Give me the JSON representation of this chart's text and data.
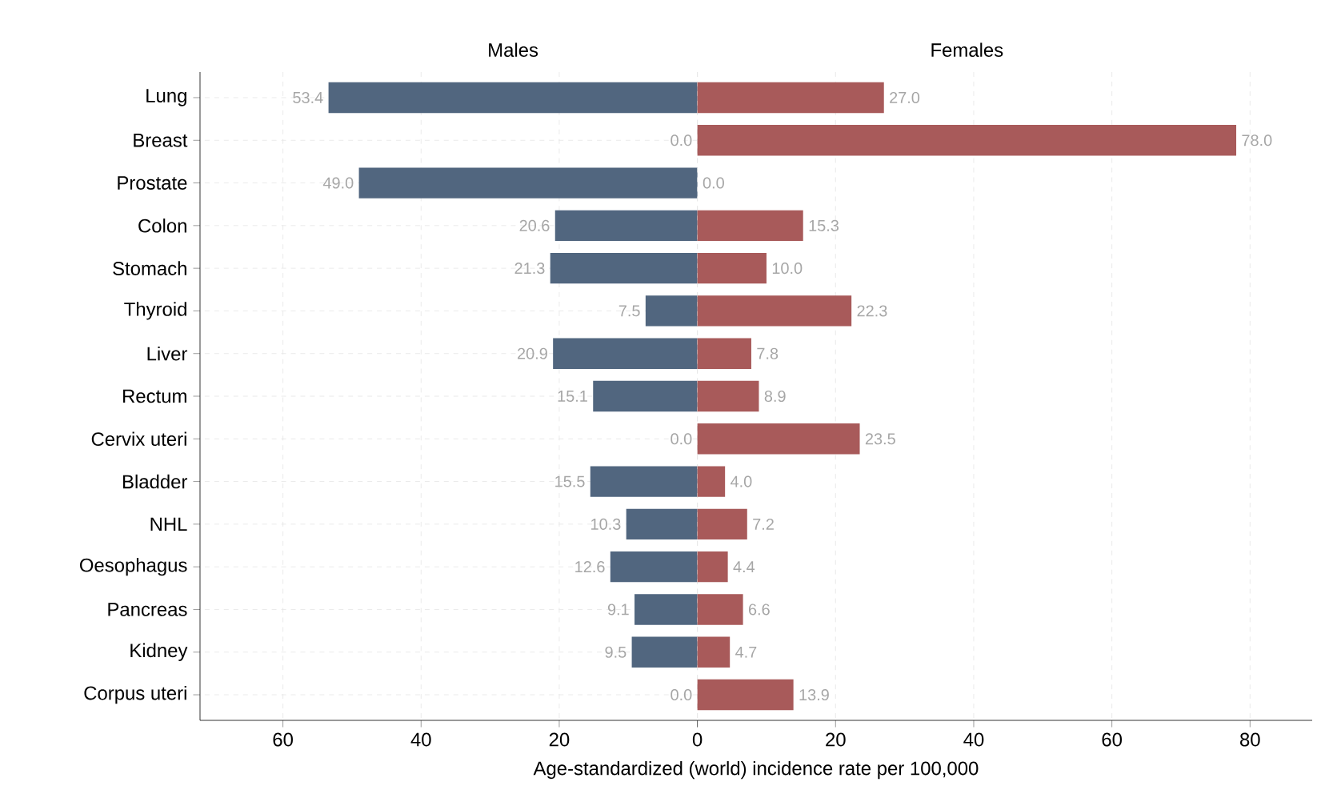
{
  "chart_data": [
    {
      "type": "bar",
      "orientation": "horizontal",
      "xlabel": "Age-standardized (world) incidence rate per 100,000",
      "categories": [
        "Lung",
        "Breast",
        "Prostate",
        "Colon",
        "Stomach",
        "Thyroid",
        "Liver",
        "Rectum",
        "Cervix uteri",
        "Bladder",
        "NHL",
        "Oesophagus",
        "Pancreas",
        "Kidney",
        "Corpus uteri"
      ],
      "series": [
        {
          "name": "Males",
          "color": "#51667f",
          "values": [
            53.4,
            0,
            49.0,
            20.6,
            21.3,
            7.5,
            20.9,
            15.1,
            0,
            15.5,
            10.3,
            12.6,
            9.1,
            9.5,
            0
          ],
          "value_labels": [
            "53.4",
            "0.0",
            "49.0",
            "20.6",
            "21.3",
            "7.5",
            "20.9",
            "15.1",
            "0.0",
            "15.5",
            "10.3",
            "12.6",
            "9.1",
            "9.5",
            "0.0"
          ]
        }
      ],
      "xlim": [
        72,
        0
      ],
      "xticks": [
        60,
        40,
        20,
        0
      ],
      "grid": true
    },
    {
      "type": "bar",
      "orientation": "horizontal",
      "categories": [
        null,
        null,
        null,
        null,
        null,
        null,
        null,
        null,
        null,
        null,
        null,
        null,
        null,
        null,
        null
      ],
      "series": [
        {
          "name": "Females",
          "color": "#a85a5a",
          "values": [
            27.0,
            78.0,
            0,
            15.3,
            10.0,
            22.3,
            7.8,
            8.9,
            23.5,
            4.0,
            7.2,
            4.4,
            6.6,
            4.7,
            13.9
          ],
          "value_labels": [
            "27.0",
            "78.0",
            "0.0",
            "15.3",
            "10.0",
            "22.3",
            "7.8",
            "8.9",
            "23.5",
            "4.0",
            "7.2",
            "4.4",
            "6.6",
            "4.7",
            "13.9"
          ]
        }
      ],
      "xlim": [
        0,
        89
      ],
      "xticks": [
        {
          "value": 0,
          "label": null
        },
        20,
        40,
        60,
        80
      ],
      "grid": true,
      "tick_labels": "x"
    }
  ]
}
